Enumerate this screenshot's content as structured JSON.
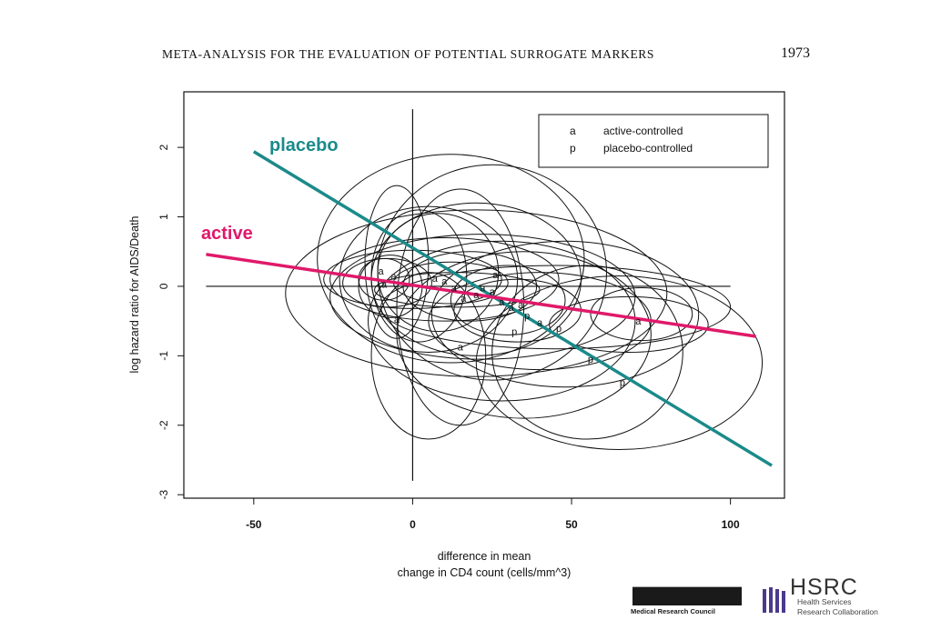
{
  "page": {
    "running_title": "META-ANALYSIS FOR THE EVALUATION OF POTENTIAL SURROGATE MARKERS",
    "page_number": "1973"
  },
  "chart_data": {
    "type": "scatter",
    "xlabel": [
      "difference in mean",
      "change in CD4 count (cells/mm^3)"
    ],
    "ylabel": "log hazard ratio for AIDS/Death",
    "xlim": [
      -72,
      117
    ],
    "ylim": [
      -3.05,
      2.8
    ],
    "x_ticks": [
      -50,
      0,
      50,
      100
    ],
    "y_ticks": [
      2,
      1,
      0,
      -1,
      -2,
      -3
    ],
    "grid": false,
    "legend_position": "top-right",
    "legend": [
      {
        "symbol": "a",
        "label": "active-controlled"
      },
      {
        "symbol": "p",
        "label": "placebo-controlled"
      }
    ],
    "reference_lines": {
      "y": 0,
      "x": 0
    },
    "regression_lines": [
      {
        "name": "placebo",
        "color": "#1b8a8a",
        "x": [
          -50,
          113
        ],
        "y": [
          1.94,
          -2.58
        ]
      },
      {
        "name": "active",
        "color": "#e0196a",
        "x": [
          -65,
          108
        ],
        "y": [
          0.46,
          -0.72
        ]
      }
    ],
    "points": [
      {
        "label": "a",
        "x": -10,
        "y": 0.22
      },
      {
        "label": "a",
        "x": -6,
        "y": 0.15
      },
      {
        "label": "a",
        "x": -9,
        "y": 0.03
      },
      {
        "label": "a",
        "x": -5,
        "y": -0.47
      },
      {
        "label": "a",
        "x": 7,
        "y": 0.12
      },
      {
        "label": "a",
        "x": 10,
        "y": 0.08
      },
      {
        "label": "a",
        "x": 13,
        "y": -0.02
      },
      {
        "label": "a",
        "x": 16,
        "y": -0.17
      },
      {
        "label": "a",
        "x": 20,
        "y": -0.12
      },
      {
        "label": "a",
        "x": 22,
        "y": -0.02
      },
      {
        "label": "a",
        "x": 25,
        "y": -0.07
      },
      {
        "label": "a",
        "x": 26,
        "y": 0.17
      },
      {
        "label": "a",
        "x": 28,
        "y": -0.22
      },
      {
        "label": "a",
        "x": 31,
        "y": -0.3
      },
      {
        "label": "a",
        "x": 34,
        "y": -0.26
      },
      {
        "label": "a",
        "x": 40,
        "y": -0.52
      },
      {
        "label": "a",
        "x": 15,
        "y": -0.87
      },
      {
        "label": "a",
        "x": 71,
        "y": -0.5
      },
      {
        "label": "p",
        "x": 32,
        "y": -0.65
      },
      {
        "label": "p",
        "x": 36,
        "y": -0.42
      },
      {
        "label": "p",
        "x": 46,
        "y": -0.6
      },
      {
        "label": "p",
        "x": 56,
        "y": -1.05
      },
      {
        "label": "p",
        "x": 66,
        "y": -1.38
      }
    ],
    "ellipses": [
      {
        "cx": 10,
        "cy": 0.1,
        "rx": 36,
        "ry": 0.6
      },
      {
        "cx": 5,
        "cy": 0.1,
        "rx": 28,
        "ry": 1.05
      },
      {
        "cx": 2,
        "cy": 0.15,
        "rx": 15,
        "ry": 0.95
      },
      {
        "cx": -5,
        "cy": 0.35,
        "rx": 10,
        "ry": 1.1
      },
      {
        "cx": -8,
        "cy": 0.05,
        "rx": 14,
        "ry": 0.35
      },
      {
        "cx": -9,
        "cy": 0.1,
        "rx": 8,
        "ry": 0.3
      },
      {
        "cx": -7,
        "cy": 0.0,
        "rx": 10,
        "ry": 0.45
      },
      {
        "cx": 0,
        "cy": 0.1,
        "rx": 28,
        "ry": 0.42
      },
      {
        "cx": 8,
        "cy": 0.2,
        "rx": 19,
        "ry": 0.85
      },
      {
        "cx": 12,
        "cy": 0.05,
        "rx": 18,
        "ry": 0.3
      },
      {
        "cx": 14,
        "cy": -0.05,
        "rx": 26,
        "ry": 0.25
      },
      {
        "cx": 20,
        "cy": 0.1,
        "rx": 33,
        "ry": 1.1
      },
      {
        "cx": 18,
        "cy": 0.0,
        "rx": 21,
        "ry": 0.5
      },
      {
        "cx": 22,
        "cy": -0.15,
        "rx": 48,
        "ry": 0.9
      },
      {
        "cx": 25,
        "cy": 0.2,
        "rx": 36,
        "ry": 1.55
      },
      {
        "cx": 15,
        "cy": -0.3,
        "rx": 20,
        "ry": 1.7
      },
      {
        "cx": 12,
        "cy": 0.4,
        "rx": 42,
        "ry": 1.5
      },
      {
        "cx": 20,
        "cy": -0.1,
        "rx": 60,
        "ry": 1.2
      },
      {
        "cx": 30,
        "cy": -0.2,
        "rx": 18,
        "ry": 0.5
      },
      {
        "cx": 33,
        "cy": -0.35,
        "rx": 20,
        "ry": 0.45
      },
      {
        "cx": 28,
        "cy": -0.5,
        "rx": 42,
        "ry": 1.15
      },
      {
        "cx": 35,
        "cy": -0.7,
        "rx": 40,
        "ry": 1.2
      },
      {
        "cx": 40,
        "cy": -0.5,
        "rx": 35,
        "ry": 0.7
      },
      {
        "cx": 48,
        "cy": -0.4,
        "rx": 42,
        "ry": 1.05
      },
      {
        "cx": 55,
        "cy": -0.95,
        "rx": 30,
        "ry": 1.25
      },
      {
        "cx": 65,
        "cy": -1.1,
        "rx": 45,
        "ry": 1.25
      },
      {
        "cx": 72,
        "cy": -0.4,
        "rx": 16,
        "ry": 0.38
      },
      {
        "cx": 68,
        "cy": -0.55,
        "rx": 25,
        "ry": 0.4
      },
      {
        "cx": 45,
        "cy": -0.3,
        "rx": 55,
        "ry": 0.6
      },
      {
        "cx": 5,
        "cy": -1.0,
        "rx": 18,
        "ry": 1.2
      }
    ]
  },
  "logos": {
    "mrc_caption": "Medical Research Council",
    "hsrc_word": "HSRC",
    "hsrc_line1": "Health Services",
    "hsrc_line2": "Research Collaboration"
  },
  "colors": {
    "placebo": "#1b8a8a",
    "active": "#e0196a",
    "ink": "#111111"
  }
}
